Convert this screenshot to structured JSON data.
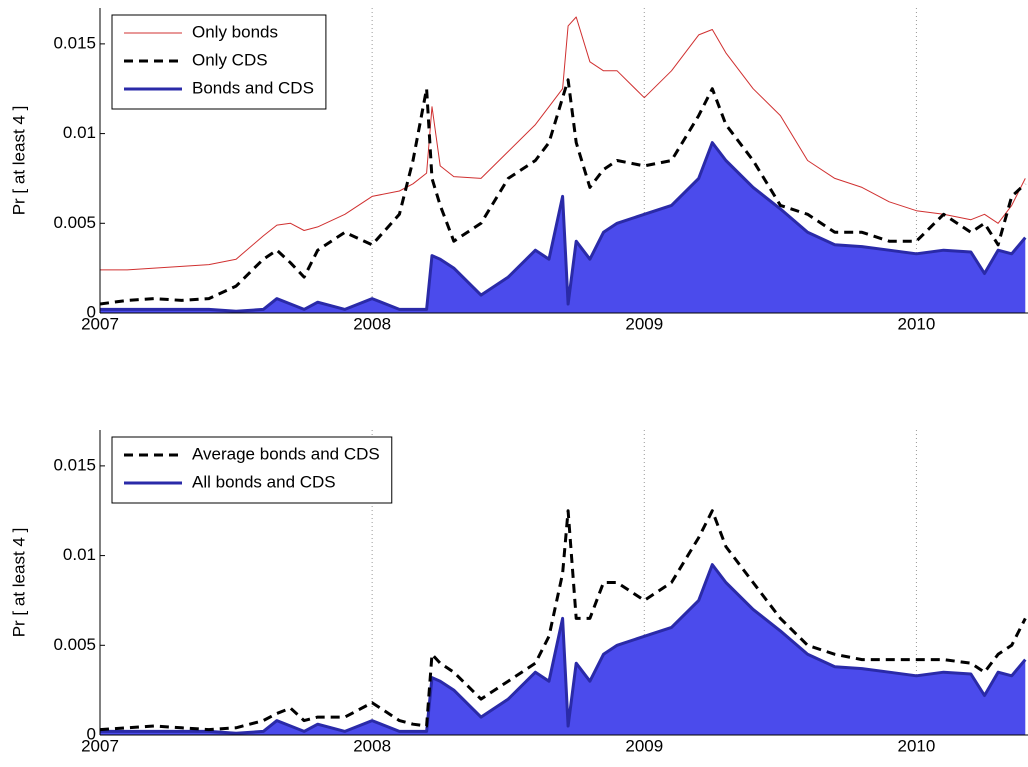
{
  "chart_data": [
    {
      "type": "line",
      "ylabel": "Pr [ at least 4 ]",
      "x": [
        2007.0,
        2007.1,
        2007.2,
        2007.3,
        2007.4,
        2007.5,
        2007.6,
        2007.65,
        2007.7,
        2007.75,
        2007.8,
        2007.9,
        2008.0,
        2008.1,
        2008.15,
        2008.2,
        2008.22,
        2008.25,
        2008.3,
        2008.4,
        2008.5,
        2008.6,
        2008.65,
        2008.7,
        2008.72,
        2008.75,
        2008.8,
        2008.85,
        2008.9,
        2009.0,
        2009.1,
        2009.2,
        2009.25,
        2009.3,
        2009.4,
        2009.5,
        2009.6,
        2009.7,
        2009.8,
        2009.9,
        2010.0,
        2010.1,
        2010.2,
        2010.25,
        2010.3,
        2010.35,
        2010.4
      ],
      "xlim": [
        2007,
        2010.41
      ],
      "xticks": [
        2007,
        2008,
        2009,
        2010
      ],
      "ylim": [
        0,
        0.017
      ],
      "yticks": [
        0,
        0.005,
        0.01,
        0.015
      ],
      "grid": "x",
      "legend": "upper left",
      "series": [
        {
          "name": "Only bonds",
          "color": "#d03030",
          "style": "solid",
          "values": [
            0.0024,
            0.0024,
            0.0025,
            0.0026,
            0.0027,
            0.003,
            0.0043,
            0.0049,
            0.005,
            0.0046,
            0.0048,
            0.0055,
            0.0065,
            0.0068,
            0.0072,
            0.0078,
            0.0115,
            0.0082,
            0.0076,
            0.0075,
            0.009,
            0.0105,
            0.0115,
            0.0125,
            0.016,
            0.0165,
            0.014,
            0.0135,
            0.0135,
            0.012,
            0.0135,
            0.0155,
            0.0158,
            0.0145,
            0.0125,
            0.011,
            0.0085,
            0.0075,
            0.007,
            0.0062,
            0.0057,
            0.0055,
            0.0052,
            0.0055,
            0.005,
            0.006,
            0.0075
          ]
        },
        {
          "name": "Only CDS",
          "color": "#000000",
          "style": "dashed",
          "values": [
            0.0005,
            0.0007,
            0.0008,
            0.0007,
            0.0008,
            0.0015,
            0.003,
            0.0035,
            0.0028,
            0.002,
            0.0035,
            0.0045,
            0.0038,
            0.0055,
            0.0085,
            0.0125,
            0.0075,
            0.006,
            0.004,
            0.005,
            0.0075,
            0.0085,
            0.0095,
            0.012,
            0.013,
            0.0095,
            0.007,
            0.008,
            0.0085,
            0.0082,
            0.0085,
            0.011,
            0.0125,
            0.0105,
            0.0085,
            0.006,
            0.0055,
            0.0045,
            0.0045,
            0.004,
            0.004,
            0.0055,
            0.0045,
            0.005,
            0.0038,
            0.0065,
            0.0072
          ]
        },
        {
          "name": "Bonds and CDS",
          "color": "#2a2aa8",
          "fill": "#4b4bec",
          "style": "area",
          "values": [
            0.0002,
            0.0002,
            0.0002,
            0.0002,
            0.0002,
            0.0001,
            0.0002,
            0.0008,
            0.0005,
            0.0002,
            0.0006,
            0.0002,
            0.0008,
            0.0002,
            0.0002,
            0.0002,
            0.0032,
            0.003,
            0.0025,
            0.001,
            0.002,
            0.0035,
            0.003,
            0.0065,
            0.0005,
            0.004,
            0.003,
            0.0045,
            0.005,
            0.0055,
            0.006,
            0.0075,
            0.0095,
            0.0085,
            0.007,
            0.0058,
            0.0045,
            0.0038,
            0.0037,
            0.0035,
            0.0033,
            0.0035,
            0.0034,
            0.0022,
            0.0035,
            0.0033,
            0.0042
          ]
        }
      ]
    },
    {
      "type": "line",
      "ylabel": "Pr [ at least 4 ]",
      "x": [
        2007.0,
        2007.1,
        2007.2,
        2007.3,
        2007.4,
        2007.5,
        2007.6,
        2007.65,
        2007.7,
        2007.75,
        2007.8,
        2007.9,
        2008.0,
        2008.1,
        2008.15,
        2008.2,
        2008.22,
        2008.25,
        2008.3,
        2008.4,
        2008.5,
        2008.6,
        2008.65,
        2008.7,
        2008.72,
        2008.75,
        2008.8,
        2008.85,
        2008.9,
        2009.0,
        2009.1,
        2009.2,
        2009.25,
        2009.3,
        2009.4,
        2009.5,
        2009.6,
        2009.7,
        2009.8,
        2009.9,
        2010.0,
        2010.1,
        2010.2,
        2010.25,
        2010.3,
        2010.35,
        2010.4
      ],
      "xlim": [
        2007,
        2010.41
      ],
      "xticks": [
        2007,
        2008,
        2009,
        2010
      ],
      "ylim": [
        0,
        0.017
      ],
      "yticks": [
        0,
        0.005,
        0.01,
        0.015
      ],
      "grid": "x",
      "legend": "upper left",
      "series": [
        {
          "name": "Average bonds and CDS",
          "color": "#000000",
          "style": "dashed",
          "values": [
            0.0003,
            0.0004,
            0.0005,
            0.0004,
            0.0003,
            0.0004,
            0.0008,
            0.0012,
            0.0015,
            0.0008,
            0.001,
            0.001,
            0.0018,
            0.0008,
            0.0006,
            0.0005,
            0.0045,
            0.004,
            0.0035,
            0.002,
            0.003,
            0.004,
            0.0055,
            0.009,
            0.0125,
            0.0065,
            0.0065,
            0.0085,
            0.0085,
            0.0075,
            0.0085,
            0.011,
            0.0125,
            0.0105,
            0.0085,
            0.0065,
            0.005,
            0.0045,
            0.0042,
            0.0042,
            0.0042,
            0.0042,
            0.004,
            0.0035,
            0.0045,
            0.005,
            0.0065
          ]
        },
        {
          "name": "All bonds and CDS",
          "color": "#2a2aa8",
          "fill": "#4b4bec",
          "style": "area",
          "values": [
            0.0002,
            0.0002,
            0.0002,
            0.0002,
            0.0002,
            0.0001,
            0.0002,
            0.0008,
            0.0005,
            0.0002,
            0.0006,
            0.0002,
            0.0008,
            0.0002,
            0.0002,
            0.0002,
            0.0032,
            0.003,
            0.0025,
            0.001,
            0.002,
            0.0035,
            0.003,
            0.0065,
            0.0005,
            0.004,
            0.003,
            0.0045,
            0.005,
            0.0055,
            0.006,
            0.0075,
            0.0095,
            0.0085,
            0.007,
            0.0058,
            0.0045,
            0.0038,
            0.0037,
            0.0035,
            0.0033,
            0.0035,
            0.0034,
            0.0022,
            0.0035,
            0.0033,
            0.0042
          ]
        }
      ]
    }
  ]
}
